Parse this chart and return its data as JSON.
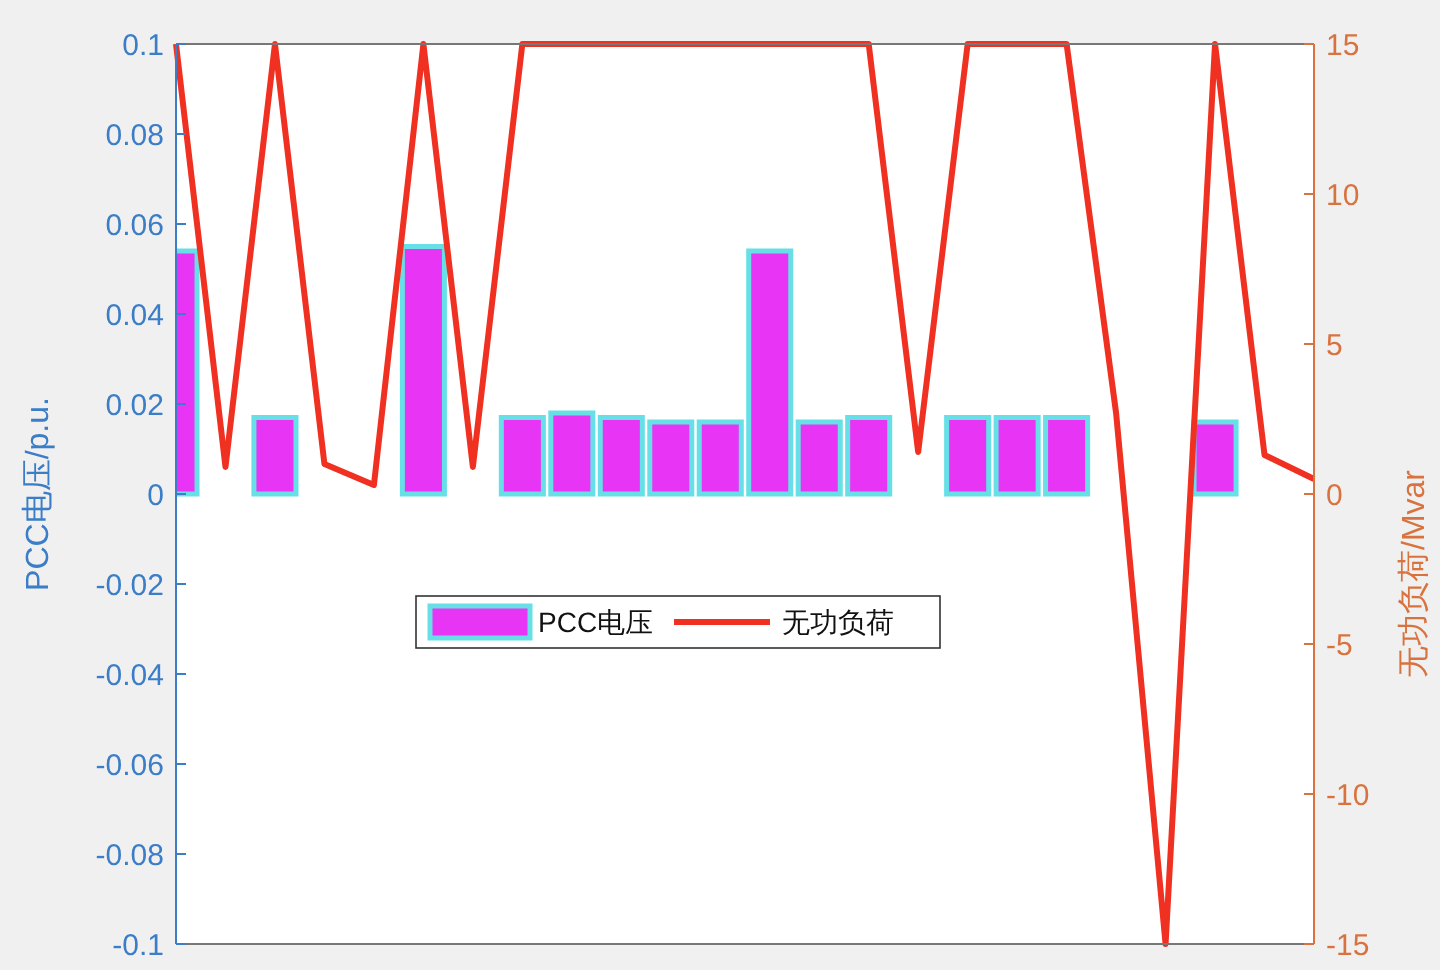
{
  "chart_data": {
    "type": "bar",
    "ylabel": "PCC电压/p.u.",
    "y2label": "无功负荷/Mvar",
    "categories": [
      null,
      null,
      null,
      null,
      null,
      null,
      null,
      null,
      null,
      null,
      null,
      null,
      null,
      null,
      null,
      null,
      null,
      null,
      null,
      null,
      null,
      null,
      null,
      null
    ],
    "ylim": [
      -0.1,
      0.1
    ],
    "yticks": [
      -0.1,
      -0.08,
      -0.06,
      -0.04,
      -0.02,
      0,
      0.02,
      0.04,
      0.06,
      0.08,
      0.1
    ],
    "y2lim": [
      -15,
      15
    ],
    "y2ticks": [
      -15,
      -10,
      -5,
      0,
      5,
      10,
      15
    ],
    "series": [
      {
        "name": "PCC电压",
        "color": "#e834f4",
        "values": [
          0.054,
          0,
          0.017,
          0,
          0,
          0.055,
          0,
          0.017,
          0.018,
          0.017,
          0.016,
          0.016,
          0.054,
          0.016,
          0.017,
          0,
          0.017,
          0.017,
          0.017,
          0,
          0,
          0.016,
          0,
          0
        ]
      },
      {
        "name": "无功负荷",
        "type": "line",
        "axis": "y2",
        "color": "#f03020",
        "values": [
          15,
          0.9,
          15,
          1.0,
          0.3,
          15,
          0.9,
          15,
          15,
          15,
          15,
          15,
          15,
          15,
          15,
          1.4,
          15,
          15,
          15,
          2.7,
          -15,
          15,
          1.3,
          0.5
        ]
      }
    ],
    "legend": "center left",
    "grid": false,
    "marker": "none",
    "line_style": "solid"
  }
}
